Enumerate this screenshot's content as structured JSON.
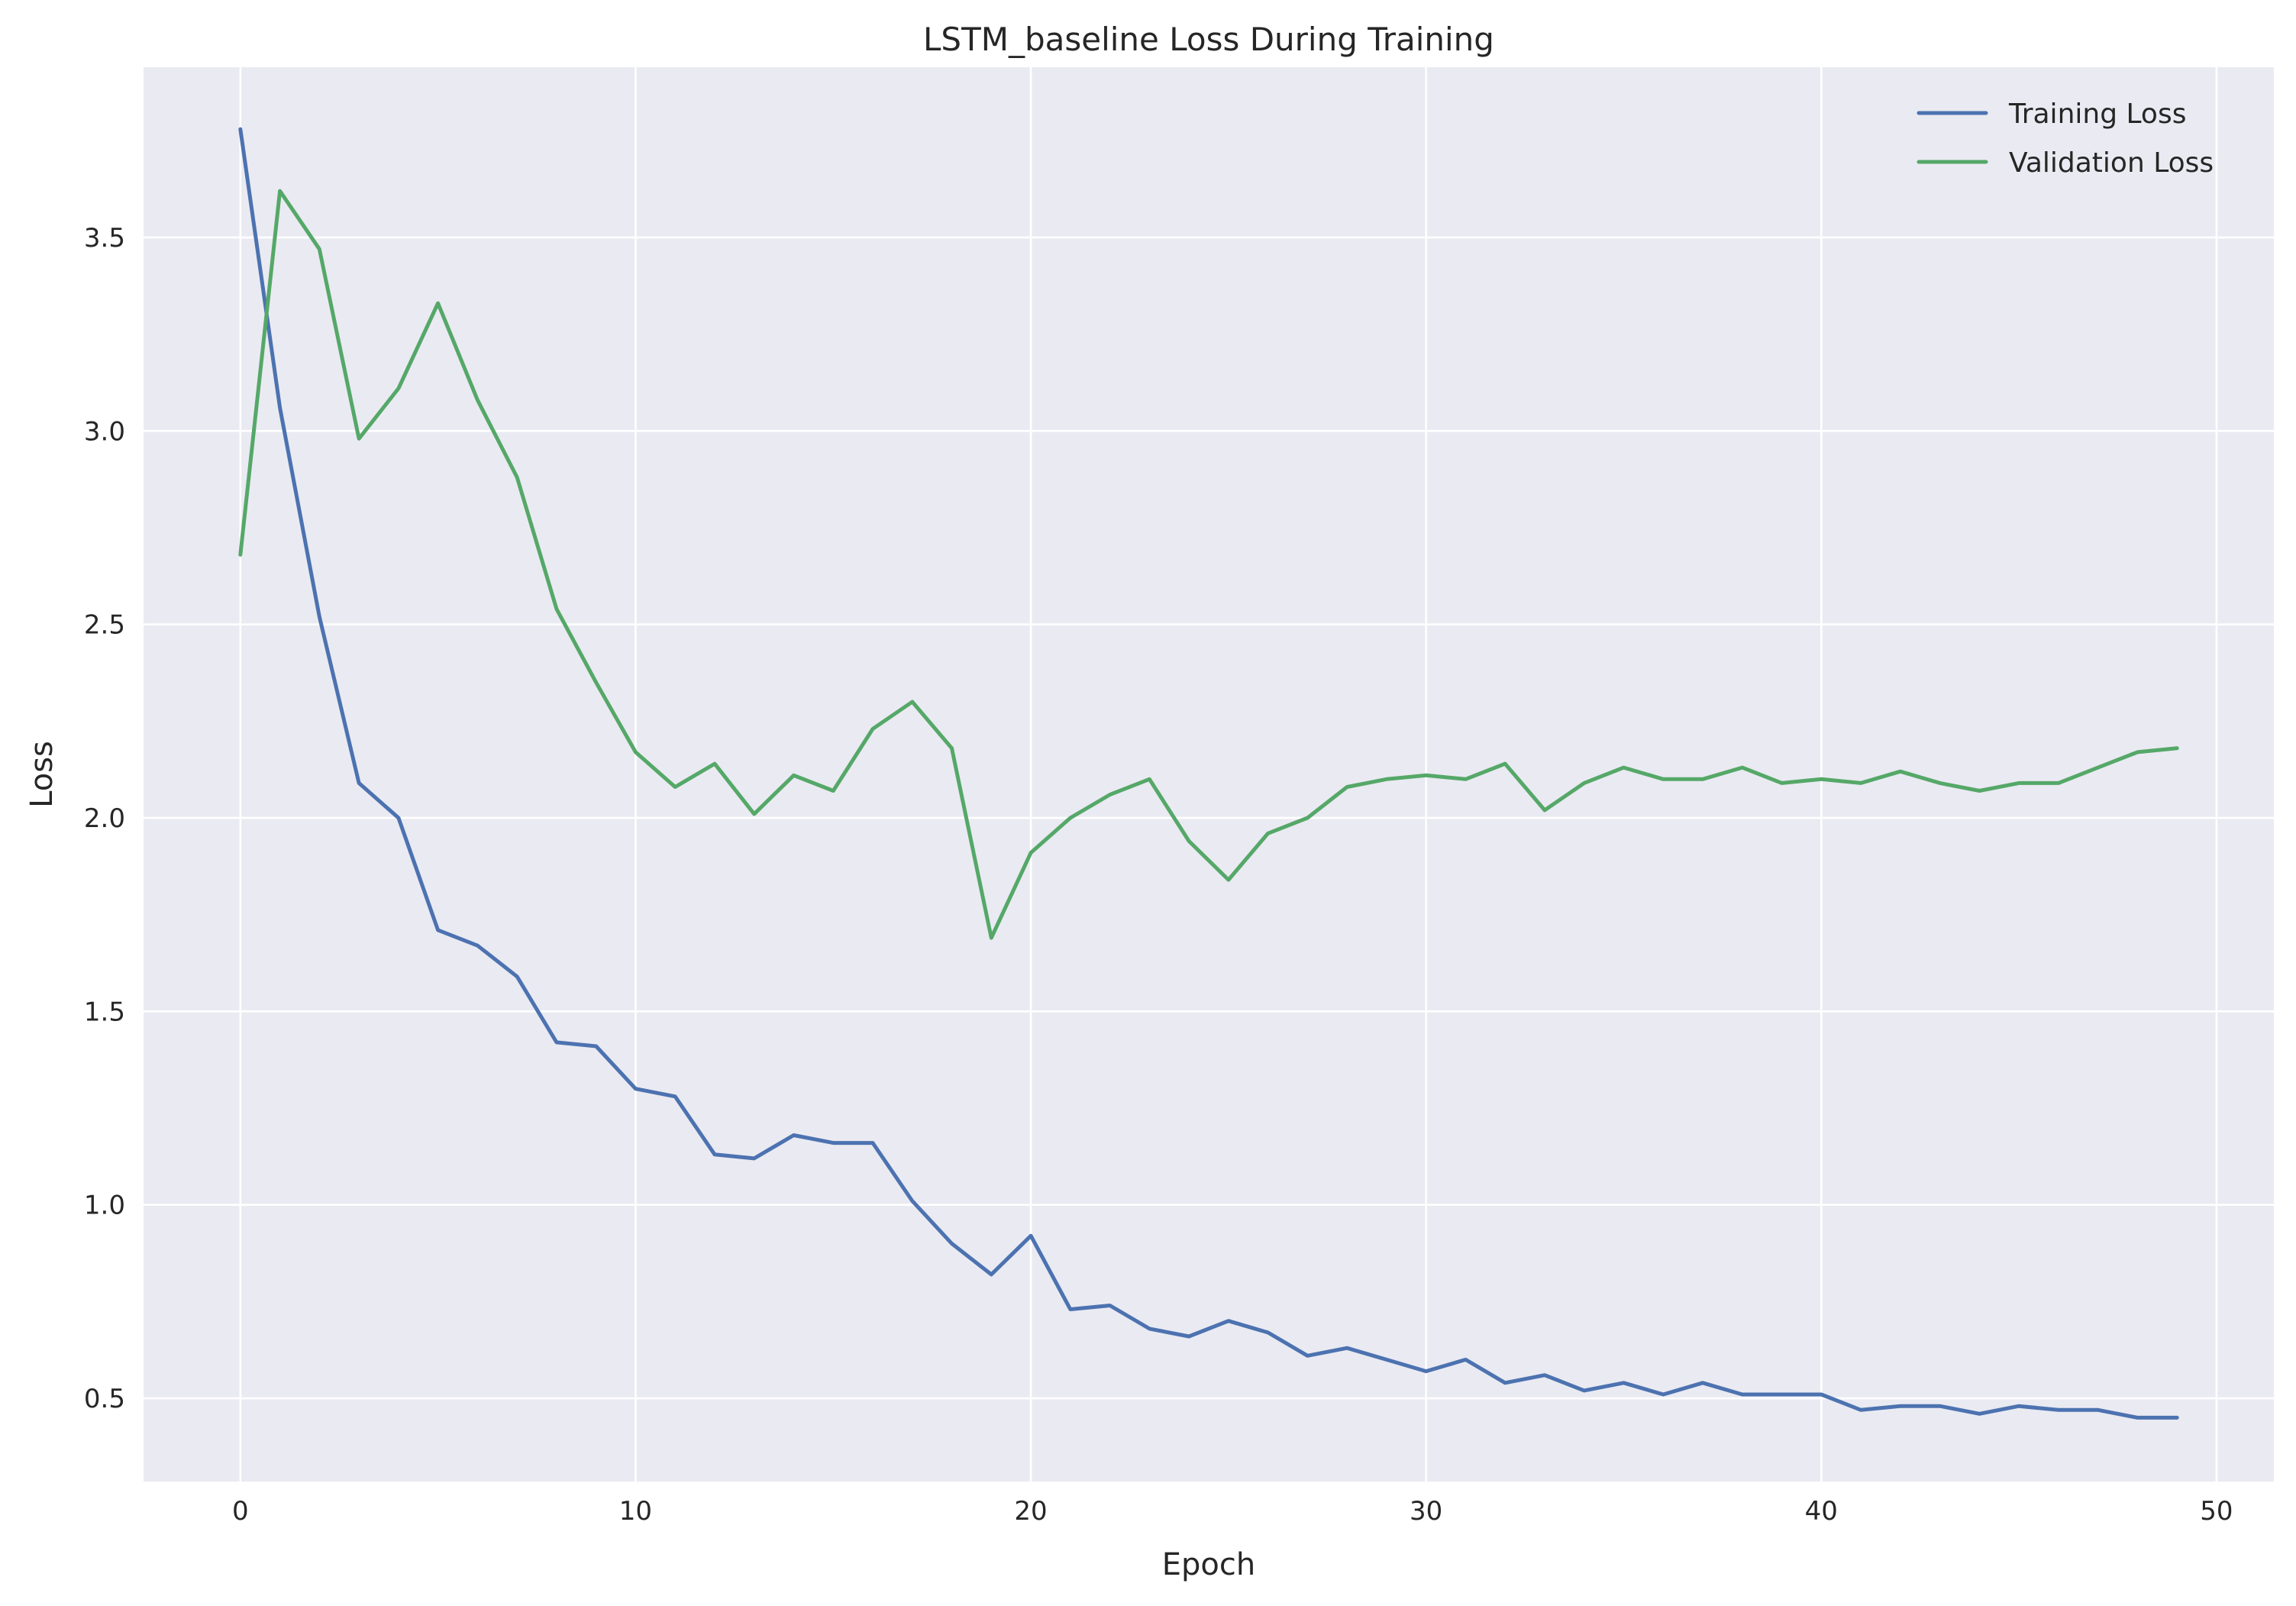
{
  "chart_data": {
    "type": "line",
    "title": "LSTM_baseline Loss During Training",
    "xlabel": "Epoch",
    "ylabel": "Loss",
    "xlim": [
      -2.45,
      51.45
    ],
    "ylim": [
      0.285,
      3.94
    ],
    "xticks": [
      0,
      10,
      20,
      30,
      40,
      50
    ],
    "yticks": [
      0.5,
      1.0,
      1.5,
      2.0,
      2.5,
      3.0,
      3.5
    ],
    "grid": true,
    "legend_position": "upper right",
    "background": "#EAEAF2",
    "x": [
      0,
      1,
      2,
      3,
      4,
      5,
      6,
      7,
      8,
      9,
      10,
      11,
      12,
      13,
      14,
      15,
      16,
      17,
      18,
      19,
      20,
      21,
      22,
      23,
      24,
      25,
      26,
      27,
      28,
      29,
      30,
      31,
      32,
      33,
      34,
      35,
      36,
      37,
      38,
      39,
      40,
      41,
      42,
      43,
      44,
      45,
      46,
      47,
      48,
      49
    ],
    "series": [
      {
        "name": "Training Loss",
        "color": "#4C72B0",
        "values": [
          3.78,
          3.06,
          2.52,
          2.09,
          2.0,
          1.71,
          1.67,
          1.59,
          1.42,
          1.41,
          1.3,
          1.28,
          1.13,
          1.12,
          1.18,
          1.16,
          1.16,
          1.01,
          0.9,
          0.82,
          0.92,
          0.73,
          0.74,
          0.68,
          0.66,
          0.7,
          0.67,
          0.61,
          0.63,
          0.6,
          0.57,
          0.6,
          0.54,
          0.56,
          0.52,
          0.54,
          0.51,
          0.54,
          0.51,
          0.51,
          0.51,
          0.47,
          0.48,
          0.48,
          0.46,
          0.48,
          0.47,
          0.47,
          0.45,
          0.45
        ]
      },
      {
        "name": "Validation Loss",
        "color": "#55A868",
        "values": [
          2.68,
          3.62,
          3.47,
          2.98,
          3.11,
          3.33,
          3.08,
          2.88,
          2.54,
          2.35,
          2.17,
          2.08,
          2.14,
          2.01,
          2.11,
          2.07,
          2.23,
          2.3,
          2.18,
          1.69,
          1.91,
          2.0,
          2.06,
          2.1,
          1.94,
          1.84,
          1.96,
          2.0,
          2.08,
          2.1,
          2.11,
          2.1,
          2.14,
          2.02,
          2.09,
          2.13,
          2.1,
          2.1,
          2.13,
          2.09,
          2.1,
          2.09,
          2.12,
          2.09,
          2.07,
          2.09,
          2.09,
          2.13,
          2.17,
          2.18
        ]
      }
    ]
  }
}
